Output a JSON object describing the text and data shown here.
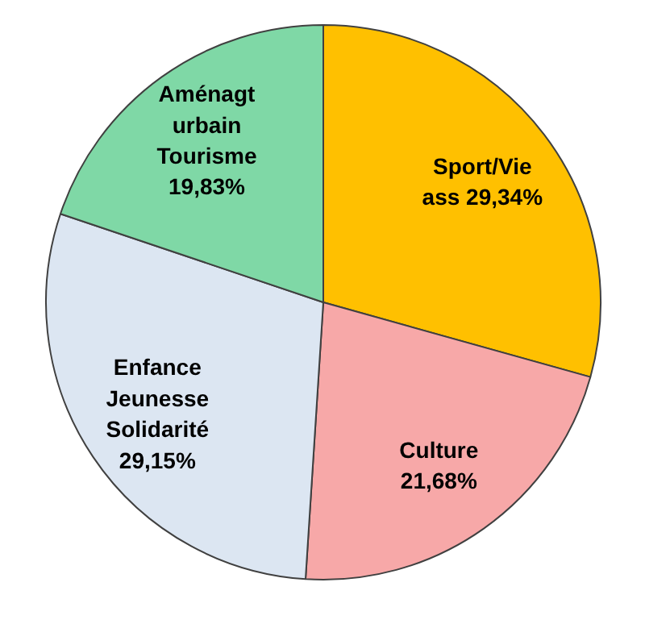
{
  "chart_data": {
    "type": "pie",
    "categories": [
      "Sport/Vie ass",
      "Culture",
      "Enfance Jeunesse Solidarité",
      "Aménagt urbain Tourisme"
    ],
    "values": [
      29.34,
      21.68,
      29.15,
      19.83
    ],
    "colors": [
      "#ffc000",
      "#f7a8a8",
      "#dce6f2",
      "#7fd8a6"
    ],
    "value_labels": [
      "29,34%",
      "21,68%",
      "29,15%",
      "19,83%"
    ]
  }
}
